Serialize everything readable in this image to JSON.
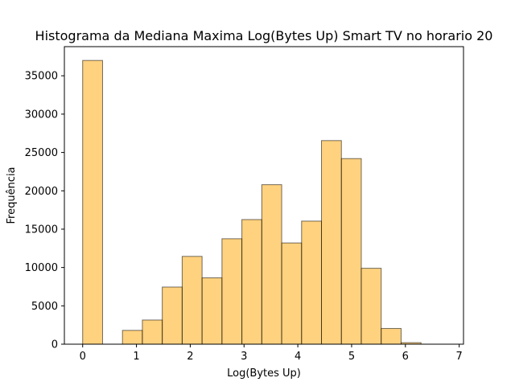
{
  "chart_data": {
    "type": "bar",
    "title": "Histograma da  Mediana Maxima Log(Bytes Up) Smart TV no horario 20",
    "xlabel": "Log(Bytes Up)",
    "ylabel": "Frequência",
    "xlim": [
      -0.34,
      7.08
    ],
    "ylim": [
      0,
      38800
    ],
    "xticks": [
      0,
      1,
      2,
      3,
      4,
      5,
      6,
      7
    ],
    "yticks": [
      0,
      5000,
      10000,
      15000,
      20000,
      25000,
      30000,
      35000
    ],
    "bins": [
      {
        "x0": 0.0,
        "x1": 0.37,
        "value": 37000
      },
      {
        "x0": 0.37,
        "x1": 0.74,
        "value": 0
      },
      {
        "x0": 0.74,
        "x1": 1.11,
        "value": 1800
      },
      {
        "x0": 1.11,
        "x1": 1.48,
        "value": 3150
      },
      {
        "x0": 1.48,
        "x1": 1.85,
        "value": 7450
      },
      {
        "x0": 1.85,
        "x1": 2.22,
        "value": 11450
      },
      {
        "x0": 2.22,
        "x1": 2.59,
        "value": 8650
      },
      {
        "x0": 2.59,
        "x1": 2.96,
        "value": 13750
      },
      {
        "x0": 2.96,
        "x1": 3.33,
        "value": 16250
      },
      {
        "x0": 3.33,
        "x1": 3.7,
        "value": 20800
      },
      {
        "x0": 3.7,
        "x1": 4.07,
        "value": 13200
      },
      {
        "x0": 4.07,
        "x1": 4.44,
        "value": 16050
      },
      {
        "x0": 4.44,
        "x1": 4.81,
        "value": 26550
      },
      {
        "x0": 4.81,
        "x1": 5.18,
        "value": 24200
      },
      {
        "x0": 5.18,
        "x1": 5.55,
        "value": 9900
      },
      {
        "x0": 5.55,
        "x1": 5.92,
        "value": 2050
      },
      {
        "x0": 5.92,
        "x1": 6.29,
        "value": 200
      },
      {
        "x0": 6.29,
        "x1": 6.66,
        "value": 0
      },
      {
        "x0": 6.66,
        "x1": 7.03,
        "value": 0
      }
    ],
    "bar_color": "#ffa500",
    "bar_opacity": 0.5,
    "bar_edge_color": "#000000",
    "grid": false,
    "legend": "none"
  }
}
